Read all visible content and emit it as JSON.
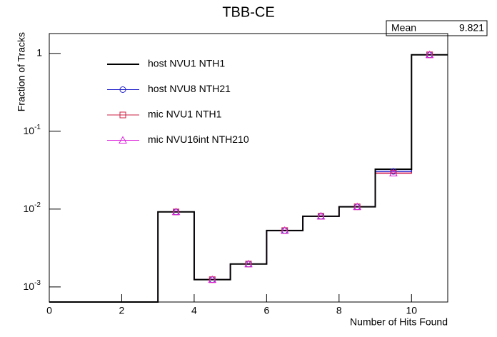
{
  "chart_data": {
    "type": "histogram",
    "title": "TBB-CE",
    "x_label": "Number of Hits Found",
    "y_label": "Fraction of Tracks",
    "log_y": true,
    "bins": [
      0,
      1,
      2,
      3,
      4,
      5,
      6,
      7,
      8,
      9,
      10,
      11
    ],
    "xlim": [
      0,
      11
    ],
    "xticks": [
      0,
      2,
      4,
      6,
      8,
      10
    ],
    "ylim": [
      0.00064,
      1.8
    ],
    "yticks": [
      {
        "value": 0.001,
        "label": "10",
        "exponent": "-3"
      },
      {
        "value": 0.01,
        "label": "10",
        "exponent": "-2"
      },
      {
        "value": 0.1,
        "label": "10",
        "exponent": "-1"
      },
      1
    ],
    "series": [
      {
        "name": "host NVU1 NTH1",
        "color": "#000000",
        "marker": "none",
        "values": [
          0,
          0,
          0,
          0.0092,
          0.00124,
          0.00197,
          0.0053,
          0.0081,
          0.0107,
          0.0325,
          0.96
        ]
      },
      {
        "name": "host NVU8 NTH21",
        "color": "#2222cc",
        "marker": "circle",
        "values": [
          0,
          0,
          0,
          0.0092,
          0.00124,
          0.00197,
          0.0053,
          0.0081,
          0.0107,
          0.0305,
          0.96
        ]
      },
      {
        "name": "mic NVU1 NTH1",
        "color": "#cc2244",
        "marker": "square",
        "values": [
          0,
          0,
          0,
          0.0092,
          0.00124,
          0.00197,
          0.0053,
          0.0081,
          0.0107,
          0.029,
          0.96
        ]
      },
      {
        "name": "mic NVU16int NTH210",
        "color": "#dd22dd",
        "marker": "triangle",
        "values": [
          0,
          0,
          0,
          0.0092,
          0.00124,
          0.00197,
          0.0053,
          0.0081,
          0.0107,
          0.029,
          0.96
        ]
      }
    ],
    "stats": {
      "label": "Mean",
      "value": 9.821
    }
  }
}
